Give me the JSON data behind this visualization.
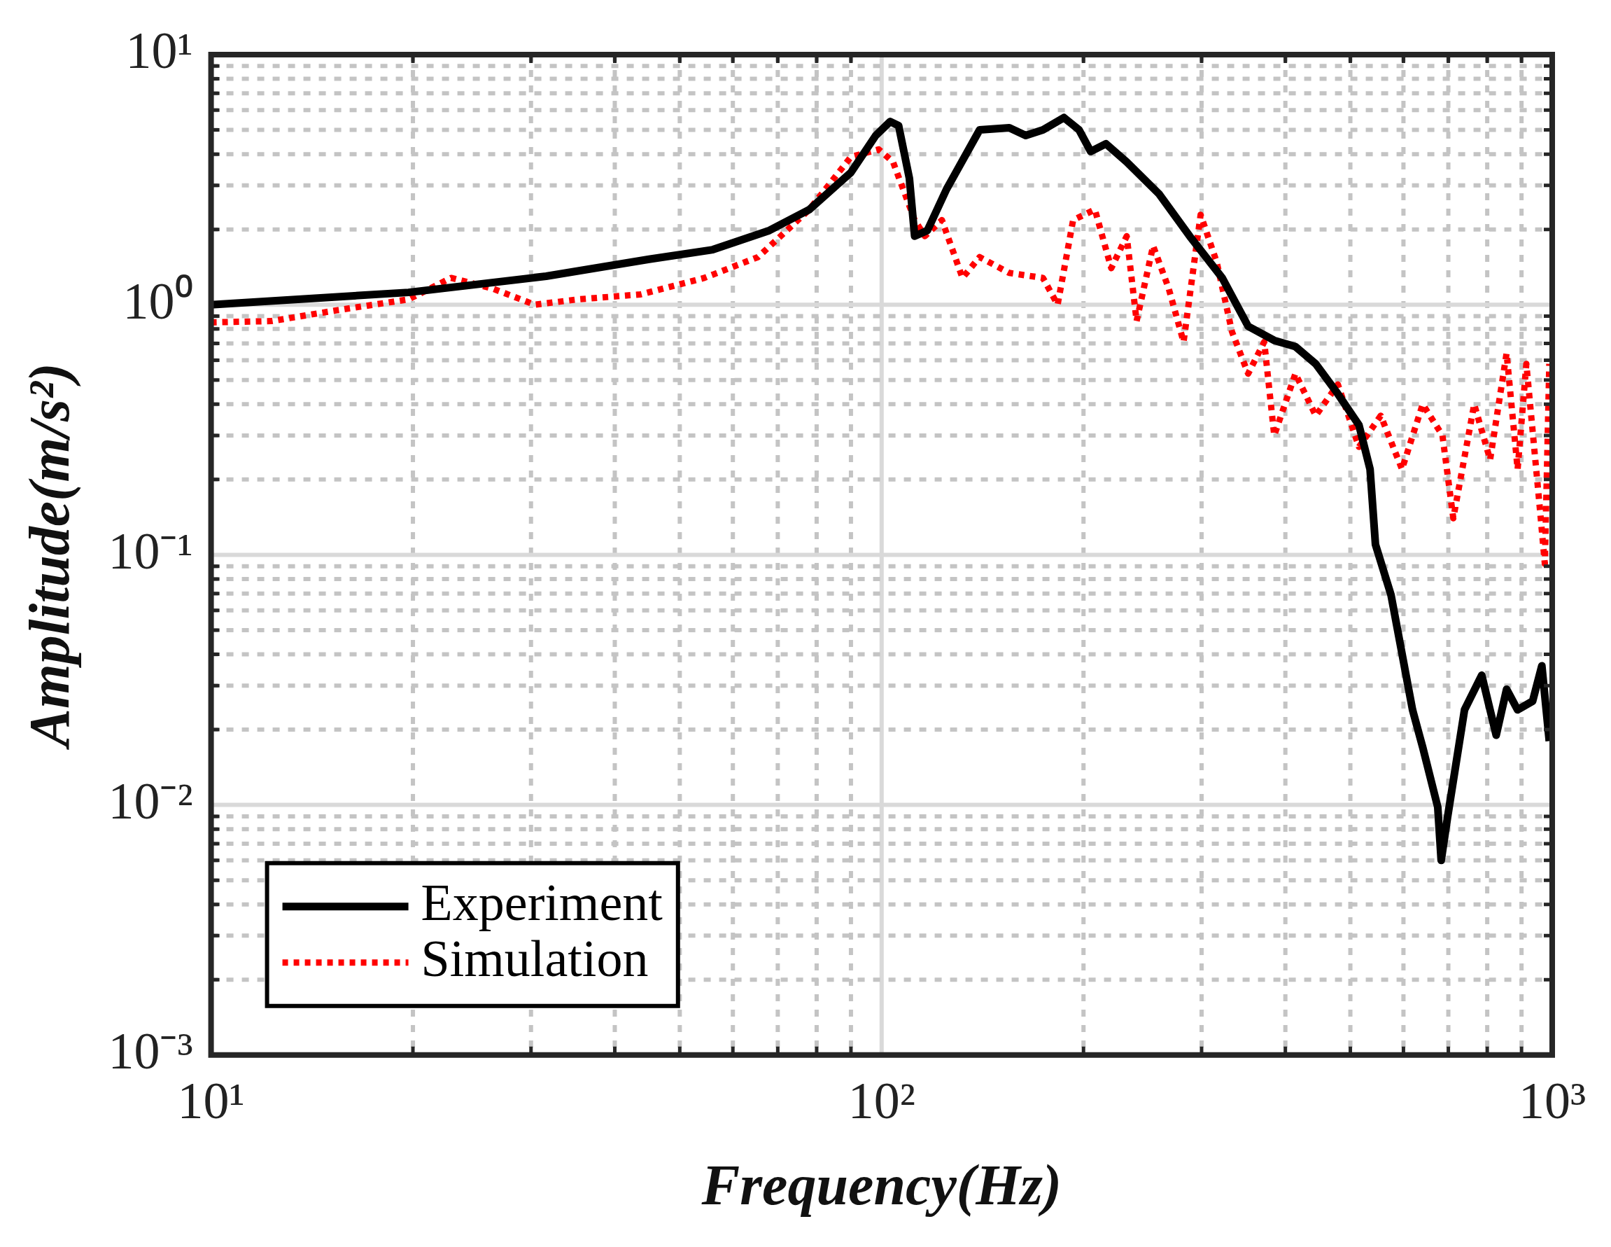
{
  "chart_data": {
    "type": "line",
    "xlabel": "Frequency(Hz)",
    "ylabel": "Amplitude(m/s²)",
    "log": "xy",
    "grid": true,
    "legend": "bottom left",
    "xlim": [
      10,
      1000
    ],
    "ylim": [
      0.001,
      10
    ],
    "xticks": [
      {
        "value": 10,
        "label": "10¹"
      },
      {
        "value": 20,
        "label": null
      },
      {
        "value": 30,
        "label": null
      },
      {
        "value": 40,
        "label": null
      },
      {
        "value": 50,
        "label": null
      },
      {
        "value": 60,
        "label": null
      },
      {
        "value": 70,
        "label": null
      },
      {
        "value": 80,
        "label": null
      },
      {
        "value": 90,
        "label": null
      },
      {
        "value": 100,
        "label": "10²"
      },
      {
        "value": 200,
        "label": null
      },
      {
        "value": 300,
        "label": null
      },
      {
        "value": 400,
        "label": null
      },
      {
        "value": 500,
        "label": null
      },
      {
        "value": 600,
        "label": null
      },
      {
        "value": 700,
        "label": null
      },
      {
        "value": 800,
        "label": null
      },
      {
        "value": 900,
        "label": null
      },
      {
        "value": 1000,
        "label": "10³"
      }
    ],
    "yticks": [
      {
        "value": 0.001,
        "label": "10⁻³"
      },
      {
        "value": 0.002,
        "label": null
      },
      {
        "value": 0.003,
        "label": null
      },
      {
        "value": 0.004,
        "label": null
      },
      {
        "value": 0.005,
        "label": null
      },
      {
        "value": 0.006,
        "label": null
      },
      {
        "value": 0.007,
        "label": null
      },
      {
        "value": 0.008,
        "label": null
      },
      {
        "value": 0.009,
        "label": null
      },
      {
        "value": 0.01,
        "label": "10⁻²"
      },
      {
        "value": 0.02,
        "label": null
      },
      {
        "value": 0.03,
        "label": null
      },
      {
        "value": 0.04,
        "label": null
      },
      {
        "value": 0.05,
        "label": null
      },
      {
        "value": 0.06,
        "label": null
      },
      {
        "value": 0.07,
        "label": null
      },
      {
        "value": 0.08,
        "label": null
      },
      {
        "value": 0.09,
        "label": null
      },
      {
        "value": 0.1,
        "label": "10⁻¹"
      },
      {
        "value": 0.2,
        "label": null
      },
      {
        "value": 0.3,
        "label": null
      },
      {
        "value": 0.4,
        "label": null
      },
      {
        "value": 0.5,
        "label": null
      },
      {
        "value": 0.6,
        "label": null
      },
      {
        "value": 0.7,
        "label": null
      },
      {
        "value": 0.8,
        "label": null
      },
      {
        "value": 0.9,
        "label": null
      },
      {
        "value": 1,
        "label": "10⁰"
      },
      {
        "value": 2,
        "label": null
      },
      {
        "value": 3,
        "label": null
      },
      {
        "value": 4,
        "label": null
      },
      {
        "value": 5,
        "label": null
      },
      {
        "value": 6,
        "label": null
      },
      {
        "value": 7,
        "label": null
      },
      {
        "value": 8,
        "label": null
      },
      {
        "value": 9,
        "label": null
      },
      {
        "value": 10,
        "label": "10¹"
      }
    ],
    "series": [
      {
        "name": "Experiment",
        "color": "#000000",
        "line_style": "solid",
        "x": [
          10,
          19.7,
          31.6,
          45,
          56,
          68,
          78,
          90,
          98,
          103,
          106,
          110,
          112,
          117,
          125,
          140,
          155,
          164,
          174,
          187,
          197,
          205,
          216,
          232,
          259,
          288,
          322,
          352,
          385,
          414,
          444,
          479,
          515,
          535,
          545,
          575,
          619,
          641,
          675,
          683,
          698,
          740,
          785,
          825,
          855,
          888,
          935,
          965,
          990
        ],
        "values": [
          1.0,
          1.12,
          1.3,
          1.52,
          1.66,
          1.98,
          2.4,
          3.38,
          4.75,
          5.4,
          5.2,
          3.2,
          1.88,
          1.98,
          2.9,
          5.0,
          5.1,
          4.75,
          5.0,
          5.6,
          5.0,
          4.1,
          4.4,
          3.72,
          2.78,
          1.88,
          1.28,
          0.82,
          0.72,
          0.68,
          0.58,
          0.44,
          0.33,
          0.22,
          0.11,
          0.069,
          0.024,
          0.017,
          0.0098,
          0.006,
          0.0089,
          0.024,
          0.033,
          0.019,
          0.029,
          0.024,
          0.026,
          0.036,
          0.018
        ]
      },
      {
        "name": "Simulation",
        "color": "#ff0000",
        "line_style": "dotted",
        "x": [
          10,
          12.3,
          15.4,
          19.7,
          22.8,
          26.3,
          30.4,
          35.2,
          43.7,
          54.4,
          65.4,
          78,
          90,
          99,
          104,
          112,
          116,
          123,
          132,
          140,
          155,
          174,
          183,
          193,
          208,
          220,
          232,
          240,
          254,
          268,
          282,
          299,
          316,
          333,
          352,
          372,
          385,
          414,
          444,
          479,
          515,
          555,
          597,
          641,
          686,
          712,
          765,
          808,
          855,
          888,
          915,
          956,
          975,
          990
        ],
        "values": [
          0.85,
          0.86,
          0.95,
          1.05,
          1.28,
          1.16,
          1.0,
          1.05,
          1.1,
          1.28,
          1.55,
          2.4,
          3.9,
          4.18,
          3.72,
          2.18,
          1.88,
          2.18,
          1.28,
          1.55,
          1.34,
          1.28,
          1.0,
          2.18,
          2.4,
          1.4,
          1.88,
          0.86,
          1.72,
          1.16,
          0.71,
          2.29,
          1.48,
          0.78,
          0.53,
          0.71,
          0.3,
          0.53,
          0.36,
          0.48,
          0.27,
          0.36,
          0.22,
          0.4,
          0.3,
          0.14,
          0.4,
          0.24,
          0.64,
          0.22,
          0.58,
          0.165,
          0.092,
          0.58
        ]
      }
    ]
  }
}
